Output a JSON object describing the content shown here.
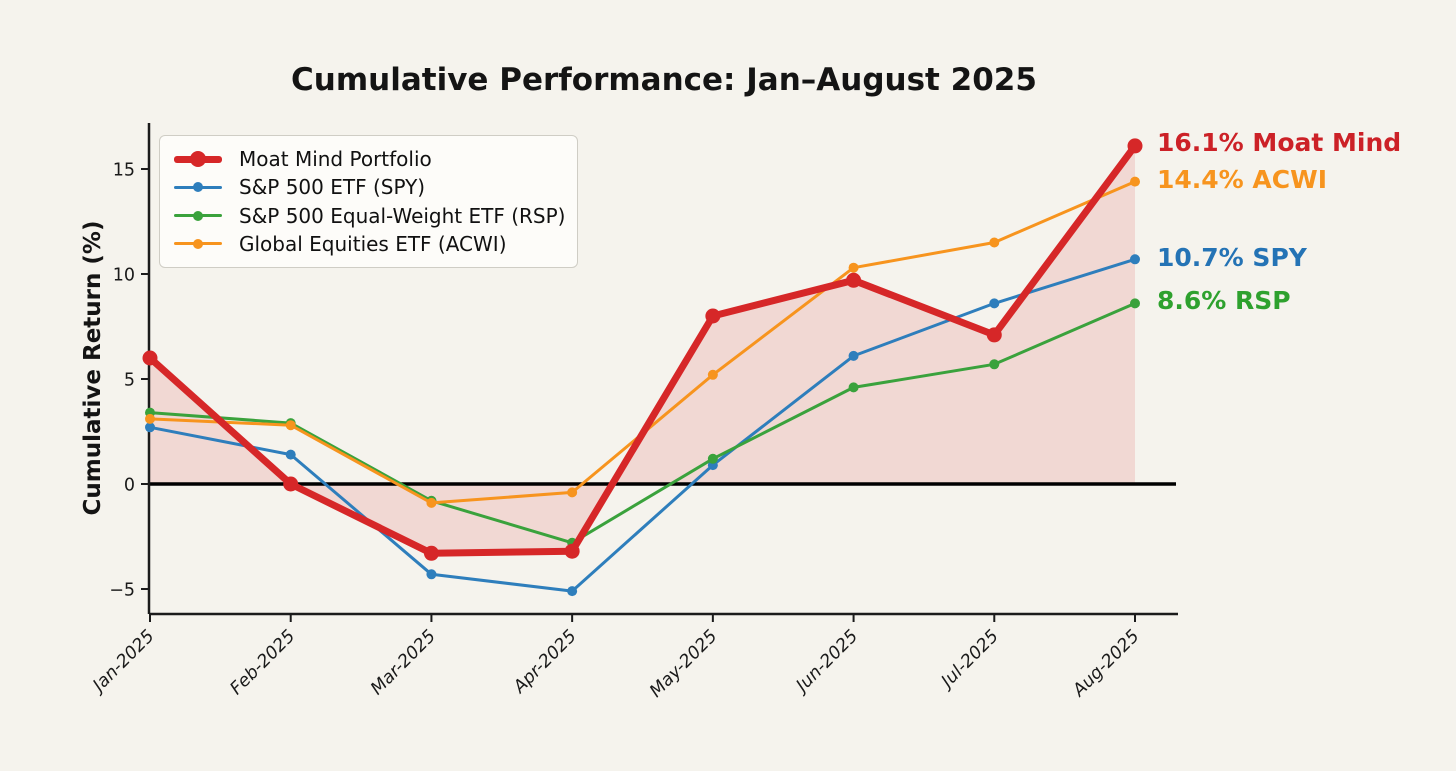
{
  "title": "Cumulative Performance: Jan–August 2025",
  "chart_data": {
    "type": "line",
    "title": "Cumulative Performance: Jan–August 2025",
    "xlabel": "",
    "ylabel": "Cumulative Return (%)",
    "categories": [
      "Jan-2025",
      "Feb-2025",
      "Mar-2025",
      "Apr-2025",
      "May-2025",
      "Jun-2025",
      "Jul-2025",
      "Aug-2025"
    ],
    "yticks": [
      -5,
      0,
      5,
      10,
      15
    ],
    "ylim": [
      -6.2,
      17.2
    ],
    "grid": false,
    "zero_line": true,
    "legend_position": "upper left",
    "background": "#f5f3ed",
    "series": [
      {
        "name": "Moat Mind Portfolio",
        "color": "#d62728",
        "line_width": 7,
        "marker_radius": 7.5,
        "fill_to_zero": true,
        "fill_color": "rgba(214,39,40,0.13)",
        "values": [
          6.0,
          0.0,
          -3.3,
          -3.2,
          8.0,
          9.7,
          7.1,
          16.1
        ]
      },
      {
        "name": "S&P 500 ETF (SPY)",
        "color": "#2e7ebc",
        "line_width": 3,
        "marker_radius": 5,
        "values": [
          2.7,
          1.4,
          -4.3,
          -5.1,
          0.9,
          6.1,
          8.6,
          10.7
        ]
      },
      {
        "name": "S&P 500 Equal-Weight ETF (RSP)",
        "color": "#3aa23c",
        "line_width": 3,
        "marker_radius": 5,
        "values": [
          3.4,
          2.9,
          -0.8,
          -2.8,
          1.2,
          4.6,
          5.7,
          8.6
        ]
      },
      {
        "name": "Global Equities ETF (ACWI)",
        "color": "#f7941e",
        "line_width": 3,
        "marker_radius": 5,
        "values": [
          3.1,
          2.8,
          -0.9,
          -0.4,
          5.2,
          10.3,
          11.5,
          14.4
        ]
      }
    ],
    "end_labels": [
      {
        "text": "16.1% Moat Mind",
        "color": "#cc2127",
        "series": "Moat Mind Portfolio"
      },
      {
        "text": "14.4% ACWI",
        "color": "#f7941e",
        "series": "Global Equities ETF (ACWI)"
      },
      {
        "text": "10.7% SPY",
        "color": "#2473b5",
        "series": "S&P 500 ETF (SPY)"
      },
      {
        "text": "8.6% RSP",
        "color": "#2ea12e",
        "series": "S&P 500 Equal-Weight ETF (RSP)"
      }
    ]
  }
}
